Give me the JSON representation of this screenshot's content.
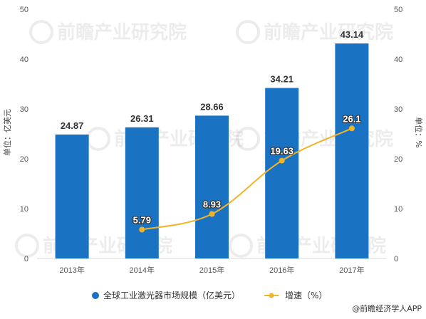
{
  "chart_data": {
    "type": "bar",
    "categories": [
      "2013年",
      "2014年",
      "2015年",
      "2016年",
      "2017年"
    ],
    "series": [
      {
        "name": "全球工业激光器市场规模（亿美元）",
        "type": "bar",
        "axis": "left",
        "values": [
          24.87,
          26.31,
          28.66,
          34.21,
          43.14
        ],
        "color": "#1a73c2"
      },
      {
        "name": "增速（%）",
        "type": "line",
        "axis": "right",
        "values": [
          null,
          5.79,
          8.93,
          19.63,
          26.1
        ],
        "color": "#f0b429"
      }
    ],
    "ylabel": "单位：亿美元",
    "y2label": "单位：%",
    "ylim": [
      0,
      50
    ],
    "y2lim": [
      0,
      50
    ],
    "yticks": [
      0,
      10,
      20,
      30,
      40,
      50
    ],
    "y2ticks": [
      0,
      10,
      20,
      30,
      40,
      50
    ],
    "grid": false,
    "legend_position": "bottom"
  },
  "credit": "@前瞻经济学人APP",
  "watermark": "前瞻产业研究院"
}
